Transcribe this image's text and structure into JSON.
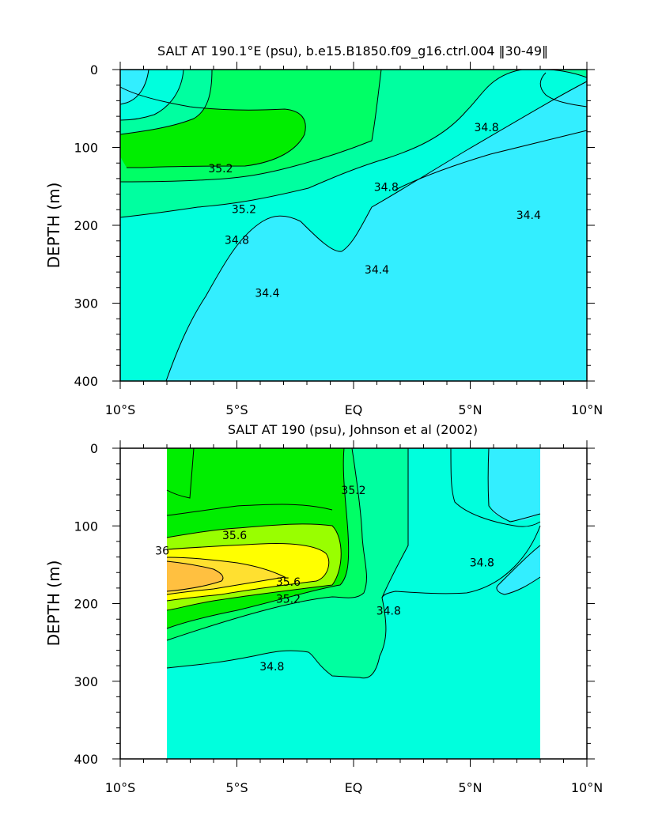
{
  "chart_data": [
    {
      "type": "heatmap",
      "title": "SALT AT 190.1°E (psu), b.e15.B1850.f09_g16.ctrl.004 ‖30-49‖",
      "xlabel": "",
      "ylabel": "DEPTH (m)",
      "x_ticks": [
        "10°S",
        "5°S",
        "EQ",
        "5°N",
        "10°N"
      ],
      "y_ticks": [
        "0",
        "100",
        "200",
        "300",
        "400"
      ],
      "xlim": [
        -10,
        10
      ],
      "ylim": [
        0,
        400
      ],
      "contour_labels": [
        {
          "text": "35.2",
          "lat": -5.7,
          "depth": 128
        },
        {
          "text": "35.2",
          "lat": -4.7,
          "depth": 180
        },
        {
          "text": "34.8",
          "lat": -5.0,
          "depth": 220
        },
        {
          "text": "34.8",
          "lat": 1.4,
          "depth": 152
        },
        {
          "text": "34.8",
          "lat": 5.7,
          "depth": 75
        },
        {
          "text": "34.4",
          "lat": -3.7,
          "depth": 288
        },
        {
          "text": "34.4",
          "lat": 1.0,
          "depth": 258
        },
        {
          "text": "34.4",
          "lat": 7.5,
          "depth": 188
        }
      ]
    },
    {
      "type": "heatmap",
      "title": "SALT AT 190 (psu), Johnson et al (2002)",
      "xlabel": "",
      "ylabel": "DEPTH (m)",
      "x_ticks": [
        "10°S",
        "5°S",
        "EQ",
        "5°N",
        "10°N"
      ],
      "y_ticks": [
        "0",
        "100",
        "200",
        "300",
        "400"
      ],
      "xlim": [
        -10,
        10
      ],
      "ylim": [
        0,
        400
      ],
      "data_xlim": [
        -8,
        8
      ],
      "contour_labels": [
        {
          "text": "35.6",
          "lat": -5.1,
          "depth": 113
        },
        {
          "text": "36",
          "lat": -8.2,
          "depth": 133
        },
        {
          "text": "35.6",
          "lat": -2.8,
          "depth": 173
        },
        {
          "text": "35.2",
          "lat": -2.8,
          "depth": 195
        },
        {
          "text": "35.2",
          "lat": 0.0,
          "depth": 55
        },
        {
          "text": "34.8",
          "lat": 1.5,
          "depth": 210
        },
        {
          "text": "34.8",
          "lat": -3.5,
          "depth": 282
        },
        {
          "text": "34.8",
          "lat": 5.5,
          "depth": 148
        }
      ]
    }
  ]
}
